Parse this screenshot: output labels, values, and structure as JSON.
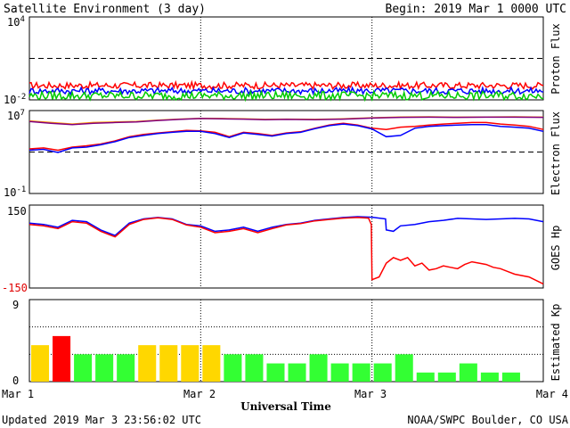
{
  "header": {
    "title": "Satellite Environment (3 day)",
    "begin": "Begin:  2019 Mar 1 0000 UTC"
  },
  "footer": {
    "updated": "Updated 2019 Mar  3 23:56:02 UTC",
    "source": "NOAA/SWPC Boulder, CO USA"
  },
  "chart_data": [
    {
      "type": "line",
      "panel": "proton",
      "ylabel": "Proton Flux",
      "yscale": "log",
      "ylim": [
        0.01,
        10000
      ],
      "ticks": {
        "top_base": "10",
        "top_exp": "4",
        "bottom_base": "10",
        "bottom_exp": "-2"
      },
      "threshold": 10,
      "series": [
        {
          "color": "#ff0000",
          "level": 0.11,
          "jitter": 0.08
        },
        {
          "color": "#0000ff",
          "level": 0.045,
          "jitter": 0.08
        },
        {
          "color": "#00cc00",
          "level": 0.02,
          "jitter": 0.1
        }
      ]
    },
    {
      "type": "line",
      "panel": "electron",
      "ylabel": "Electron Flux",
      "yscale": "log",
      "ylim": [
        0.1,
        10000000
      ],
      "ticks": {
        "top_base": "10",
        "top_exp": "7",
        "bottom_base": "10",
        "bottom_exp": "-1"
      },
      "threshold": 1000,
      "series": [
        {
          "color": "#ff9900",
          "points": [
            [
              0,
              1000000.0
            ],
            [
              3,
              700000.0
            ],
            [
              6,
              500000.0
            ],
            [
              9,
              700000.0
            ],
            [
              12,
              800000.0
            ],
            [
              15,
              900000.0
            ],
            [
              18,
              1200000.0
            ],
            [
              21,
              1500000.0
            ],
            [
              24,
              1800000.0
            ],
            [
              27,
              1700000.0
            ],
            [
              30,
              1600000.0
            ],
            [
              33,
              1400000.0
            ],
            [
              36,
              1500000.0
            ],
            [
              40,
              1400000.0
            ],
            [
              44,
              1600000.0
            ],
            [
              48,
              2000000.0
            ],
            [
              52,
              2400000.0
            ],
            [
              56,
              2500000.0
            ],
            [
              60,
              2300000.0
            ],
            [
              64,
              2400000.0
            ],
            [
              68,
              2500000.0
            ],
            [
              72,
              2300000.0
            ]
          ]
        },
        {
          "color": "#800080",
          "points": [
            [
              0,
              900000.0
            ],
            [
              3,
              600000.0
            ],
            [
              6,
              450000.0
            ],
            [
              9,
              600000.0
            ],
            [
              12,
              700000.0
            ],
            [
              15,
              800000.0
            ],
            [
              18,
              1100000.0
            ],
            [
              21,
              1400000.0
            ],
            [
              24,
              1700000.0
            ],
            [
              27,
              1600000.0
            ],
            [
              30,
              1500000.0
            ],
            [
              33,
              1300000.0
            ],
            [
              36,
              1400000.0
            ],
            [
              40,
              1300000.0
            ],
            [
              44,
              1500000.0
            ],
            [
              48,
              1900000.0
            ],
            [
              52,
              2200000.0
            ],
            [
              56,
              2300000.0
            ],
            [
              60,
              2200000.0
            ],
            [
              64,
              2300000.0
            ],
            [
              68,
              2300000.0
            ],
            [
              72,
              2200000.0
            ]
          ]
        },
        {
          "color": "#ff0000",
          "points": [
            [
              0,
              2000.0
            ],
            [
              2,
              2500.0
            ],
            [
              4,
              1500.0
            ],
            [
              6,
              3000.0
            ],
            [
              8,
              4000.0
            ],
            [
              10,
              6000.0
            ],
            [
              12,
              12000.0
            ],
            [
              14,
              30000.0
            ],
            [
              16,
              50000.0
            ],
            [
              18,
              70000.0
            ],
            [
              20,
              90000.0
            ],
            [
              22,
              120000.0
            ],
            [
              24,
              110000.0
            ],
            [
              26,
              80000.0
            ],
            [
              28,
              30000.0
            ],
            [
              30,
              80000.0
            ],
            [
              32,
              60000.0
            ],
            [
              34,
              40000.0
            ],
            [
              36,
              70000.0
            ],
            [
              38,
              90000.0
            ],
            [
              40,
              200000.0
            ],
            [
              42,
              400000.0
            ],
            [
              44,
              600000.0
            ],
            [
              46,
              400000.0
            ],
            [
              48,
              200000.0
            ],
            [
              50,
              150000.0
            ],
            [
              52,
              250000.0
            ],
            [
              54,
              300000.0
            ],
            [
              56,
              400000.0
            ],
            [
              58,
              500000.0
            ],
            [
              60,
              600000.0
            ],
            [
              62,
              700000.0
            ],
            [
              64,
              700000.0
            ],
            [
              66,
              500000.0
            ],
            [
              68,
              400000.0
            ],
            [
              70,
              300000.0
            ],
            [
              72,
              150000.0
            ]
          ]
        },
        {
          "color": "#0000ff",
          "points": [
            [
              0,
              1500.0
            ],
            [
              2,
              1800.0
            ],
            [
              4,
              900.0
            ],
            [
              6,
              2500.0
            ],
            [
              8,
              3000.0
            ],
            [
              10,
              5000.0
            ],
            [
              12,
              10000.0
            ],
            [
              14,
              25000.0
            ],
            [
              16,
              40000.0
            ],
            [
              18,
              60000.0
            ],
            [
              20,
              80000.0
            ],
            [
              22,
              100000.0
            ],
            [
              24,
              100000.0
            ],
            [
              26,
              60000.0
            ],
            [
              28,
              25000.0
            ],
            [
              30,
              70000.0
            ],
            [
              32,
              50000.0
            ],
            [
              34,
              35000.0
            ],
            [
              36,
              60000.0
            ],
            [
              38,
              80000.0
            ],
            [
              40,
              180000.0
            ],
            [
              42,
              350000.0
            ],
            [
              44,
              500000.0
            ],
            [
              46,
              350000.0
            ],
            [
              48,
              170000.0
            ],
            [
              50,
              30000.0
            ],
            [
              52,
              40000.0
            ],
            [
              54,
              200000.0
            ],
            [
              56,
              300000.0
            ],
            [
              58,
              350000.0
            ],
            [
              60,
              400000.0
            ],
            [
              62,
              450000.0
            ],
            [
              64,
              450000.0
            ],
            [
              66,
              300000.0
            ],
            [
              68,
              250000.0
            ],
            [
              70,
              200000.0
            ],
            [
              72,
              100000.0
            ]
          ]
        }
      ]
    },
    {
      "type": "line",
      "panel": "goes_hp",
      "ylabel": "GOES Hp",
      "yscale": "linear",
      "ylim": [
        -150,
        150
      ],
      "ticks": {
        "top": "150",
        "bottom": "-150"
      },
      "series": [
        {
          "color": "#0000ff",
          "points": [
            [
              0,
              85
            ],
            [
              2,
              80
            ],
            [
              4,
              70
            ],
            [
              6,
              95
            ],
            [
              8,
              90
            ],
            [
              10,
              60
            ],
            [
              12,
              40
            ],
            [
              14,
              85
            ],
            [
              16,
              100
            ],
            [
              18,
              105
            ],
            [
              20,
              100
            ],
            [
              22,
              80
            ],
            [
              24,
              75
            ],
            [
              26,
              55
            ],
            [
              28,
              60
            ],
            [
              30,
              70
            ],
            [
              32,
              55
            ],
            [
              34,
              70
            ],
            [
              36,
              80
            ],
            [
              38,
              85
            ],
            [
              40,
              95
            ],
            [
              42,
              100
            ],
            [
              44,
              105
            ],
            [
              46,
              108
            ],
            [
              48,
              106
            ],
            [
              49.9,
              100
            ],
            [
              50,
              60
            ],
            [
              51,
              55
            ],
            [
              52,
              75
            ],
            [
              54,
              80
            ],
            [
              56,
              90
            ],
            [
              58,
              95
            ],
            [
              60,
              102
            ],
            [
              62,
              100
            ],
            [
              64,
              98
            ],
            [
              66,
              100
            ],
            [
              68,
              102
            ],
            [
              70,
              100
            ],
            [
              72,
              90
            ]
          ]
        },
        {
          "color": "#ff0000",
          "points": [
            [
              0,
              80
            ],
            [
              2,
              75
            ],
            [
              4,
              65
            ],
            [
              6,
              90
            ],
            [
              8,
              85
            ],
            [
              10,
              55
            ],
            [
              12,
              35
            ],
            [
              14,
              80
            ],
            [
              16,
              98
            ],
            [
              18,
              104
            ],
            [
              20,
              98
            ],
            [
              22,
              78
            ],
            [
              24,
              70
            ],
            [
              26,
              50
            ],
            [
              28,
              55
            ],
            [
              30,
              65
            ],
            [
              32,
              50
            ],
            [
              34,
              65
            ],
            [
              36,
              78
            ],
            [
              38,
              83
            ],
            [
              40,
              93
            ],
            [
              42,
              98
            ],
            [
              44,
              103
            ],
            [
              46,
              105
            ],
            [
              47.5,
              103
            ],
            [
              47.9,
              80
            ],
            [
              48,
              -120
            ],
            [
              49,
              -110
            ],
            [
              50,
              -60
            ],
            [
              51,
              -40
            ],
            [
              52,
              -50
            ],
            [
              53,
              -40
            ],
            [
              54,
              -70
            ],
            [
              55,
              -60
            ],
            [
              56,
              -85
            ],
            [
              57,
              -80
            ],
            [
              58,
              -70
            ],
            [
              59,
              -75
            ],
            [
              60,
              -80
            ],
            [
              61,
              -65
            ],
            [
              62,
              -55
            ],
            [
              63,
              -60
            ],
            [
              64,
              -65
            ],
            [
              65,
              -75
            ],
            [
              66,
              -80
            ],
            [
              67,
              -90
            ],
            [
              68,
              -100
            ],
            [
              70,
              -110
            ],
            [
              72,
              -135
            ]
          ]
        }
      ]
    },
    {
      "type": "bar",
      "panel": "kp",
      "ylabel": "Estimated Kp",
      "ylim": [
        0,
        9
      ],
      "ticks": {
        "top": "9",
        "bottom": "0"
      },
      "bar_hours": 3,
      "values": [
        4,
        5,
        3,
        3,
        3,
        4,
        4,
        4,
        4,
        3,
        3,
        2,
        2,
        3,
        2,
        2,
        2,
        3,
        1,
        1,
        2,
        1,
        1
      ],
      "colors": {
        "low": "#33ff33",
        "mid": "#ffd700",
        "high": "#ff0000"
      },
      "x_ticks": [
        "Mar 1",
        "Mar 2",
        "Mar 3",
        "Mar 4"
      ],
      "xlabel": "Universal Time"
    }
  ]
}
